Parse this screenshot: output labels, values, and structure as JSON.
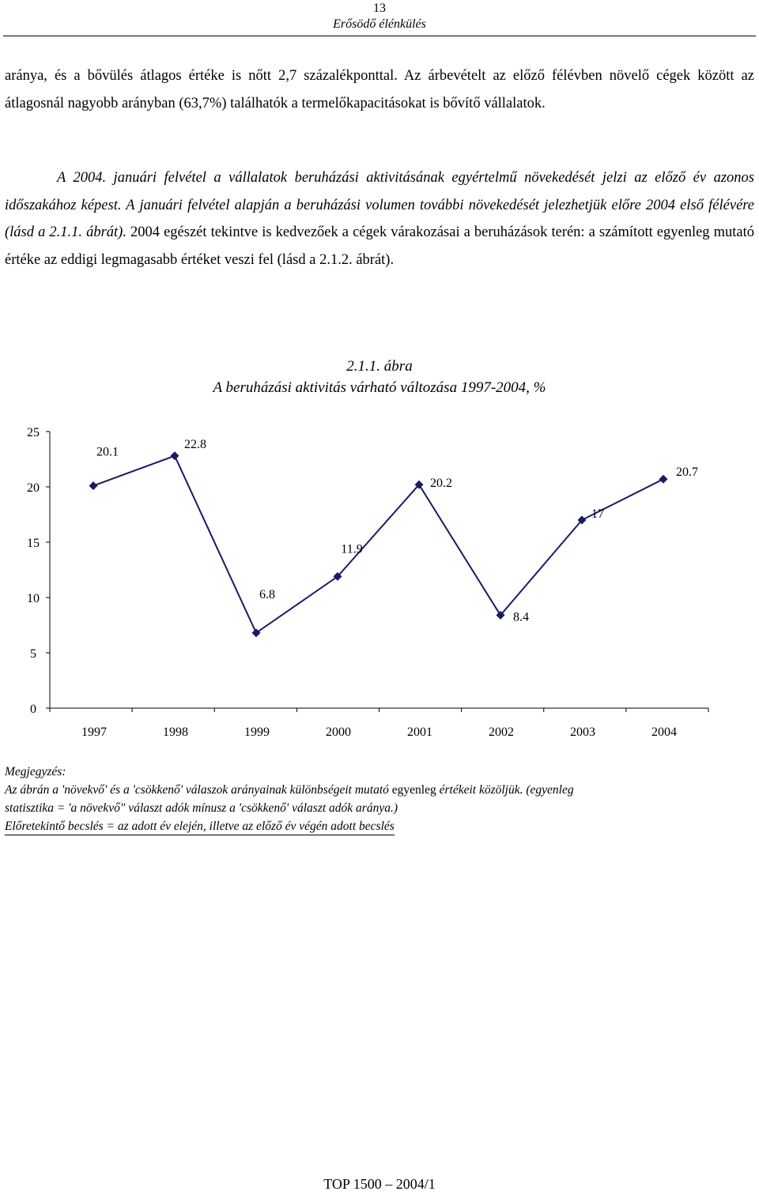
{
  "header": {
    "page_number": "13",
    "running_title": "Erősödő élénkülés"
  },
  "body": {
    "p1": "aránya, és a bővülés átlagos értéke is nőtt 2,7 százalékponttal. Az árbevételt az előző félévben növelő cégek között az átlagosnál nagyobb arányban (63,7%) találhatók a termelőkapacitásokat is bővítő vállalatok.",
    "p2_italic": "A 2004. januári felvétel a vállalatok beruházási aktivitásának egyértelmű növekedését jelzi az előző év azonos időszakához képest. A januári felvétel alapján a beruházási volumen további növekedését jelezhetjük előre 2004 első félévére (lásd a 2.1.1. ábrát).",
    "p2_normal": " 2004 egészét tekintve is kedvezőek a cégek várakozásai a beruházások terén: a számított egyenleg mutató értéke az eddigi legmagasabb értéket veszi fel (lásd a 2.1.2. ábrát)."
  },
  "figure": {
    "label": "2.1.1. ábra",
    "title": "A beruházási aktivitás várható változása 1997-2004, %"
  },
  "chart_data": {
    "type": "line",
    "x": [
      "1997",
      "1998",
      "1999",
      "2000",
      "2001",
      "2002",
      "2003",
      "2004"
    ],
    "series": [
      {
        "values": [
          20.1,
          22.8,
          6.8,
          11.9,
          20.2,
          8.4,
          17,
          20.7
        ]
      }
    ],
    "data_labels": [
      "20.1",
      "22.8",
      "6.8",
      "11.9",
      "20.2",
      "8.4",
      "17",
      "20.7"
    ],
    "y_ticks": [
      "0",
      "5",
      "10",
      "15",
      "20",
      "25"
    ],
    "ylim": [
      0,
      25
    ],
    "grid": false,
    "legend": "none",
    "marker": "diamond",
    "line_color": "#1a1a66",
    "marker_color": "#1a1a66"
  },
  "notes": {
    "heading": "Megjegyzés:",
    "line1a": "Az ábrán a 'növekvő' és a 'csökkenő' válaszok arányainak különbségeit mutató ",
    "line1b": "egyenleg",
    "line1c": " értékeit közöljük. (egyenleg",
    "line2": "statisztika = 'a növekvő\" választ adók mínusz a 'csökkenő' választ adók aránya.)",
    "line3": "Előretekintő becslés = az adott év elején, illetve az előző év végén adott becslés"
  },
  "footer": {
    "text": "TOP 1500 – 2004/1"
  }
}
